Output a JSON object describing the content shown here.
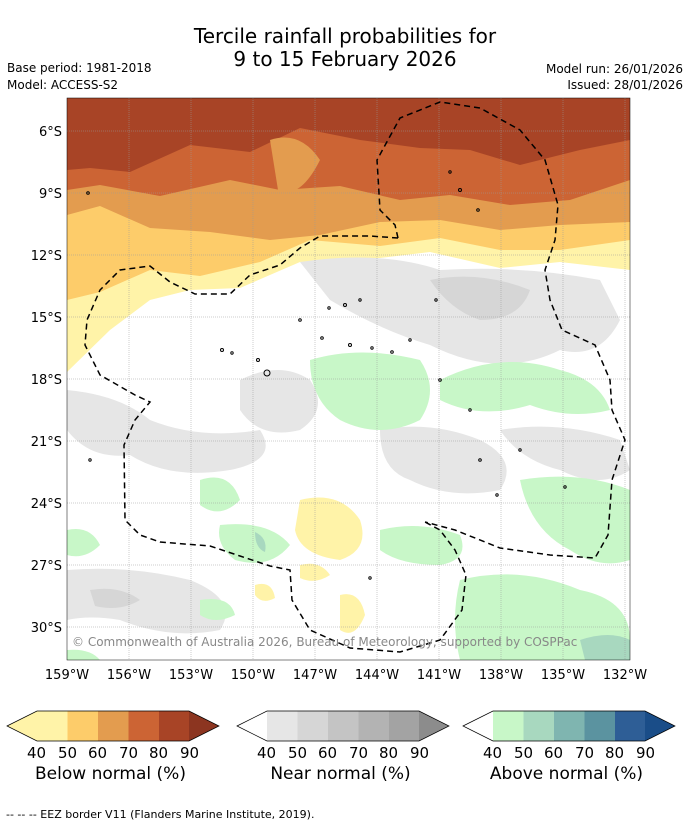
{
  "title": {
    "line1": "Tercile rainfall probabilities for",
    "line2": "9 to 15 February 2026"
  },
  "meta": {
    "base_period": "Base period: 1981-2018",
    "model": "Model: ACCESS-S2",
    "model_run": "Model run: 26/01/2026",
    "issued": "Issued: 28/01/2026"
  },
  "map": {
    "lat_labels": [
      "6°S",
      "9°S",
      "12°S",
      "15°S",
      "18°S",
      "21°S",
      "24°S",
      "27°S",
      "30°S"
    ],
    "lon_labels": [
      "159°W",
      "156°W",
      "153°W",
      "150°W",
      "147°W",
      "144°W",
      "141°W",
      "138°W",
      "135°W",
      "132°W"
    ],
    "copyright": "© Commonwealth of Australia 2026, Bureau of Meteorology, supported by COSPPac",
    "grid": true
  },
  "legend": {
    "ticks": [
      "40",
      "50",
      "60",
      "70",
      "80",
      "90"
    ],
    "below": {
      "label": "Below normal (%)",
      "colors": [
        "#fff3a8",
        "#fdcc6a",
        "#e39c4f",
        "#cc6434",
        "#a84426",
        "#8c3520"
      ]
    },
    "near": {
      "label": "Near normal (%)",
      "colors": [
        "#e6e6e6",
        "#d6d6d6",
        "#c4c4c4",
        "#b3b3b3",
        "#a3a3a3",
        "#8c8c8c"
      ]
    },
    "above": {
      "label": "Above normal (%)",
      "colors": [
        "#c8f7c8",
        "#a8d8bf",
        "#7fb5b0",
        "#5b93a0",
        "#2e5e96",
        "#1a4d88"
      ]
    }
  },
  "footer": "--  --  -- EEZ border V11 (Flanders Marine Institute, 2019)."
}
